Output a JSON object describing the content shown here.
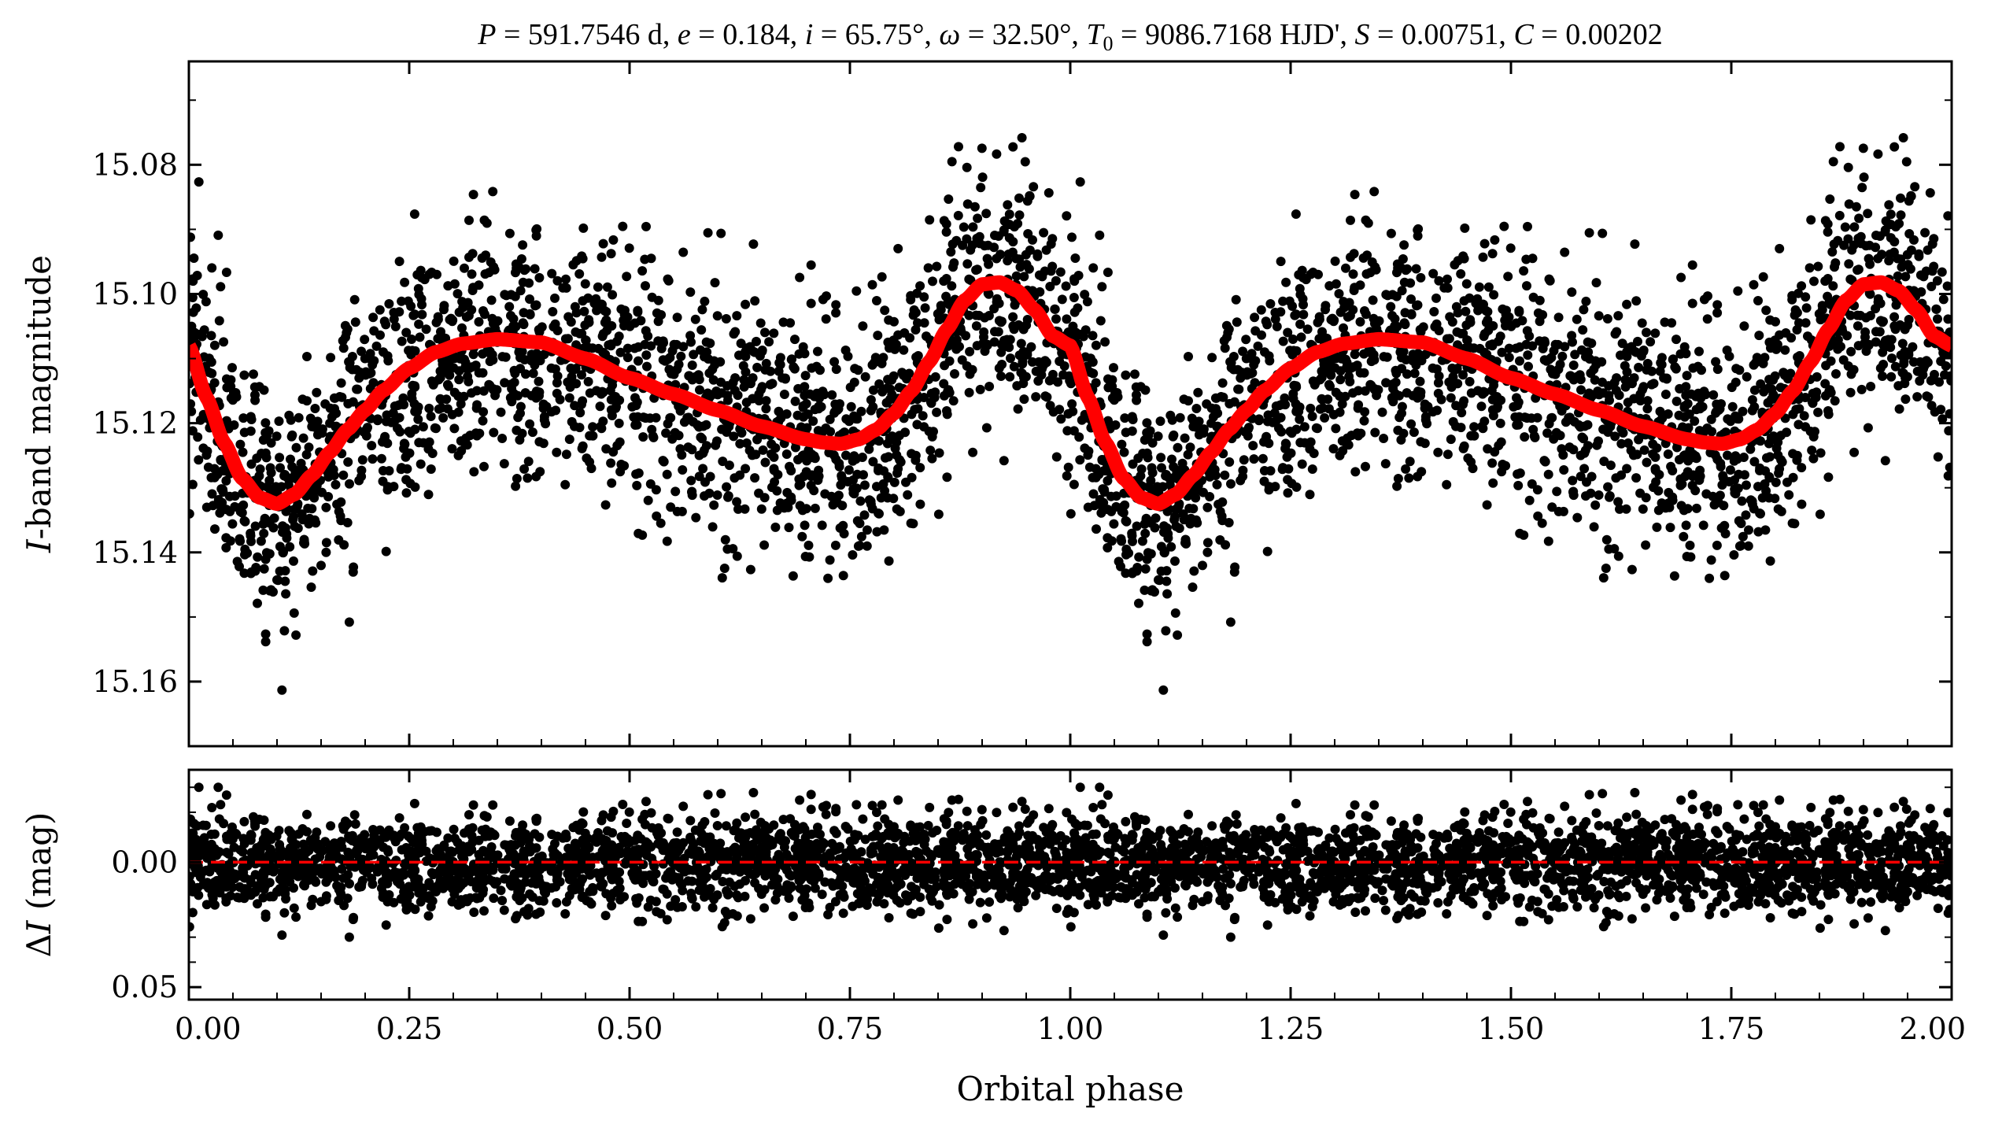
{
  "chart_data": [
    {
      "type": "scatter",
      "panel": "top",
      "title": "P = 591.7546 d, e = 0.184, i = 65.75°, ω = 32.50°, T0 = 9086.7168 HJD', S = 0.00751, C = 0.00202",
      "title_parts": {
        "p_sym": "P",
        "p_val": " = 591.7546 d, ",
        "e_sym": "e",
        "e_val": " = 0.184, ",
        "i_sym": "i",
        "i_val": " = 65.75°, ",
        "w_sym": "ω",
        "w_val": " = 32.50°, ",
        "t_sym": "T",
        "t_sub": "0",
        "t_val": " = 9086.7168 HJD', ",
        "s_sym": "S",
        "s_val": " = 0.00751, ",
        "c_sym": "C",
        "c_val": " = 0.00202"
      },
      "xlabel": "Orbital phase",
      "ylabel": {
        "sym": "I",
        "text": "-band magnitude"
      },
      "xlim": [
        0.0,
        2.0
      ],
      "ylim": [
        15.17,
        15.064
      ],
      "y_inverted": true,
      "yticks": [
        15.08,
        15.1,
        15.12,
        15.14,
        15.16
      ],
      "ytick_labels": [
        "15.08",
        "15.10",
        "15.12",
        "15.14",
        "15.16"
      ],
      "model_curve": {
        "color": "#ff0000",
        "phase": [
          0.0,
          0.02,
          0.04,
          0.06,
          0.08,
          0.1,
          0.12,
          0.14,
          0.16,
          0.18,
          0.2,
          0.22,
          0.25,
          0.28,
          0.31,
          0.35,
          0.4,
          0.45,
          0.5,
          0.55,
          0.6,
          0.65,
          0.7,
          0.72,
          0.74,
          0.76,
          0.78,
          0.8,
          0.82,
          0.84,
          0.86,
          0.88,
          0.9,
          0.92,
          0.94,
          0.96,
          0.98,
          1.0
        ],
        "magnitude": [
          15.108,
          15.116,
          15.123,
          15.1285,
          15.1315,
          15.1325,
          15.131,
          15.128,
          15.1245,
          15.121,
          15.118,
          15.115,
          15.1115,
          15.109,
          15.1077,
          15.107,
          15.1075,
          15.11,
          15.113,
          15.1155,
          15.118,
          15.1205,
          15.1225,
          15.123,
          15.1232,
          15.1225,
          15.121,
          15.1185,
          15.115,
          15.1105,
          15.1055,
          15.101,
          15.0985,
          15.0982,
          15.0995,
          15.1025,
          15.1065,
          15.108
        ]
      },
      "observations": {
        "color": "#000000",
        "note": "about 2000 black points per cycle, folded twice (phase 0–2)"
      }
    },
    {
      "type": "scatter",
      "panel": "bottom",
      "xlabel": "Orbital phase",
      "ylabel": {
        "prefix": "Δ",
        "sym": "I",
        "text": " (mag)"
      },
      "xlim": [
        0.0,
        2.0
      ],
      "ylim": [
        0.055,
        -0.037
      ],
      "y_inverted": true,
      "xticks": [
        0.0,
        0.25,
        0.5,
        0.75,
        1.0,
        1.25,
        1.5,
        1.75,
        2.0
      ],
      "xtick_labels": [
        "0.00",
        "0.25",
        "0.50",
        "0.75",
        "1.00",
        "1.25",
        "1.50",
        "1.75",
        "2.00"
      ],
      "yticks": [
        0.0,
        0.05
      ],
      "ytick_labels": [
        "0.00",
        "0.05"
      ],
      "zero_line": {
        "value": 0.0,
        "color": "#ff0000",
        "style": "dashed"
      },
      "residuals": {
        "color": "#000000",
        "spread": 0.03
      }
    }
  ]
}
